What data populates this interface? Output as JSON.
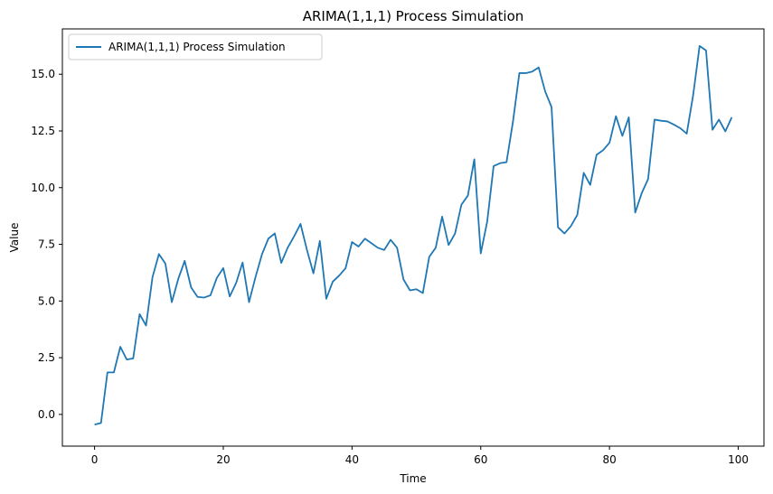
{
  "chart_data": {
    "type": "line",
    "title": "ARIMA(1,1,1) Process Simulation",
    "xlabel": "Time",
    "ylabel": "Value",
    "xlim": [
      -5,
      104
    ],
    "ylim": [
      -1.4,
      17.0
    ],
    "x_ticks": [
      0,
      20,
      40,
      60,
      80,
      100
    ],
    "x_tick_labels": [
      "0",
      "20",
      "40",
      "60",
      "80",
      "100"
    ],
    "y_ticks": [
      0.0,
      2.5,
      5.0,
      7.5,
      10.0,
      12.5,
      15.0
    ],
    "y_tick_labels": [
      "0.0",
      "2.5",
      "5.0",
      "7.5",
      "10.0",
      "12.5",
      "15.0"
    ],
    "grid": false,
    "legend_position": "top-left",
    "series": [
      {
        "name": "ARIMA(1,1,1) Process Simulation",
        "color": "#1f77b4",
        "x": [
          0,
          1,
          2,
          3,
          4,
          5,
          6,
          7,
          8,
          9,
          10,
          11,
          12,
          13,
          14,
          15,
          16,
          17,
          18,
          19,
          20,
          21,
          22,
          23,
          24,
          25,
          26,
          27,
          28,
          29,
          30,
          31,
          32,
          33,
          34,
          35,
          36,
          37,
          38,
          39,
          40,
          41,
          42,
          43,
          44,
          45,
          46,
          47,
          48,
          49,
          50,
          51,
          52,
          53,
          54,
          55,
          56,
          57,
          58,
          59,
          60,
          61,
          62,
          63,
          64,
          65,
          66,
          67,
          68,
          69,
          70,
          71,
          72,
          73,
          74,
          75,
          76,
          77,
          78,
          79,
          80,
          81,
          82,
          83,
          84,
          85,
          86,
          87,
          88,
          89,
          90,
          91,
          92,
          93,
          94,
          95,
          96,
          97,
          98,
          99
        ],
        "values": [
          -0.45,
          -0.38,
          1.85,
          1.85,
          2.98,
          2.42,
          2.47,
          4.42,
          3.92,
          6.05,
          7.07,
          6.65,
          4.95,
          5.97,
          6.77,
          5.6,
          5.18,
          5.15,
          5.25,
          6.02,
          6.45,
          5.2,
          5.8,
          6.7,
          4.95,
          6.05,
          7.05,
          7.75,
          7.98,
          6.68,
          7.35,
          7.85,
          8.4,
          7.25,
          6.22,
          7.65,
          5.1,
          5.85,
          6.12,
          6.45,
          7.6,
          7.4,
          7.75,
          7.55,
          7.35,
          7.25,
          7.7,
          7.35,
          5.95,
          5.47,
          5.52,
          5.35,
          6.95,
          7.35,
          8.72,
          7.47,
          7.97,
          9.25,
          9.65,
          11.25,
          7.1,
          8.5,
          10.95,
          11.08,
          11.12,
          12.9,
          15.05,
          15.05,
          15.12,
          15.3,
          14.25,
          13.55,
          8.25,
          7.98,
          8.3,
          8.8,
          10.65,
          10.12,
          11.45,
          11.65,
          11.98,
          13.15,
          12.28,
          13.1,
          8.9,
          9.75,
          10.38,
          13.0,
          12.95,
          12.92,
          12.78,
          12.62,
          12.38,
          14.08,
          16.25,
          16.05,
          12.55,
          13.0,
          12.48,
          13.1
        ]
      }
    ]
  }
}
